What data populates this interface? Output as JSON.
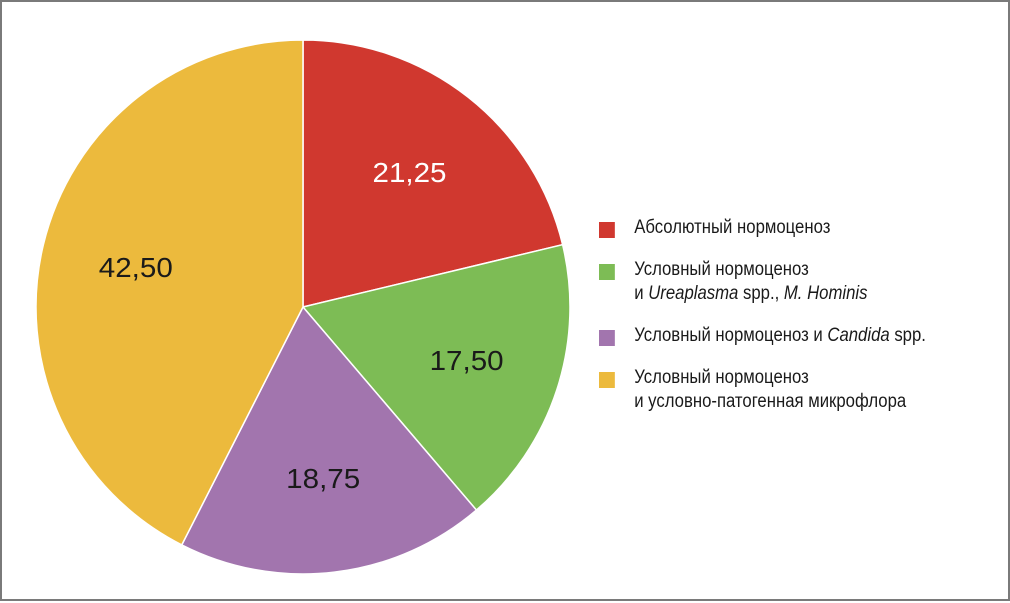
{
  "chart_data": {
    "type": "pie",
    "title": "",
    "slices": [
      {
        "label": "Абсолютный нормоценоз",
        "value": 21.25,
        "value_label": "21,25",
        "color": "#d0382f"
      },
      {
        "label": "Условный нормоценоз и Ureaplasma spp., M. Hominis",
        "value": 17.5,
        "value_label": "17,50",
        "color": "#7dbc55"
      },
      {
        "label": "Условный нормоценоз и Candida spp.",
        "value": 18.75,
        "value_label": "18,75",
        "color": "#a275ae"
      },
      {
        "label": "Условный нормоценоз и условно-патогенная микрофлора",
        "value": 42.5,
        "value_label": "42,50",
        "color": "#ecba3d"
      }
    ],
    "start_angle": "12 o'clock",
    "direction": "clockwise",
    "legend_position": "right"
  },
  "legend": {
    "items": [
      {
        "lines": [
          [
            {
              "text": "Абсолютный нормоценоз",
              "italic": false
            }
          ]
        ]
      },
      {
        "lines": [
          [
            {
              "text": "Условный нормоценоз",
              "italic": false
            }
          ],
          [
            {
              "text": "и ",
              "italic": false
            },
            {
              "text": "Ureaplasma",
              "italic": true
            },
            {
              "text": " spp., ",
              "italic": false
            },
            {
              "text": "M. Hominis",
              "italic": true
            }
          ]
        ]
      },
      {
        "lines": [
          [
            {
              "text": "Условный нормоценоз и ",
              "italic": false
            },
            {
              "text": "Candida",
              "italic": true
            },
            {
              "text": " spp.",
              "italic": false
            }
          ]
        ]
      },
      {
        "lines": [
          [
            {
              "text": "Условный нормоценоз",
              "italic": false
            }
          ],
          [
            {
              "text": "и условно-патогенная микрофлора",
              "italic": false
            }
          ]
        ]
      }
    ]
  }
}
